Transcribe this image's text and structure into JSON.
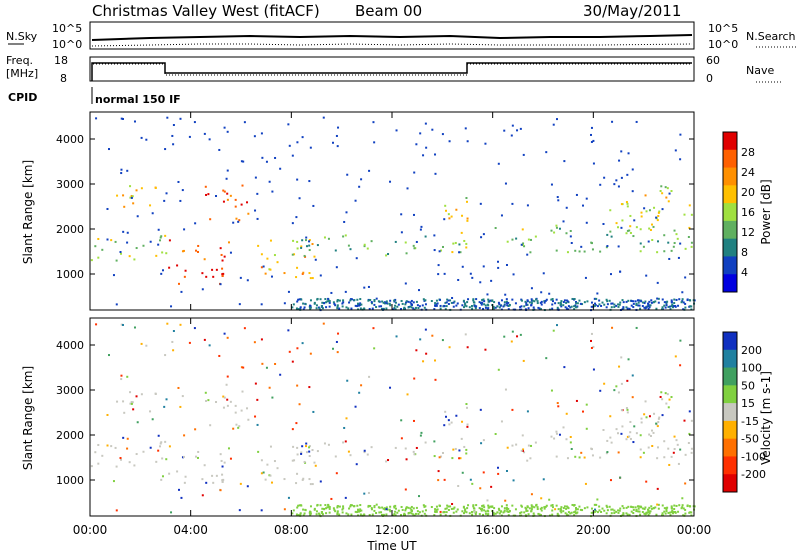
{
  "header": {
    "station": "Christmas Valley West (fitACF)",
    "beam": "Beam 00",
    "date": "30/May/2011"
  },
  "panels": {
    "nsky": {
      "label": "N.Sky",
      "ticks": [
        "10^5",
        "10^0"
      ],
      "right_label": "N.Search"
    },
    "freq": {
      "label_line1": "Freq.",
      "label_line2": "[MHz]",
      "ticks": [
        "18",
        "8"
      ],
      "right_ticks": [
        "60",
        "0"
      ],
      "right_label": "Nave"
    },
    "cpid": {
      "label": "CPID",
      "value": "normal 150 IF"
    }
  },
  "chart_data": [
    {
      "type": "heatmap",
      "name": "power",
      "ylabel": "Slant Range [km]",
      "y_ticks": [
        1000,
        2000,
        3000,
        4000
      ],
      "ylim": [
        200,
        4600
      ],
      "colorbar_label": "Power [dB]",
      "colorbar_ticks": [
        "28",
        "24",
        "20",
        "16",
        "12",
        "8",
        "4"
      ],
      "colorbar_colors": [
        "#e00000",
        "#ff6000",
        "#ff9000",
        "#ffc000",
        "#a0e040",
        "#60b060",
        "#208080",
        "#1040c0",
        "#0000e0"
      ],
      "scatter_bands": [
        {
          "t0": 0.0,
          "t1": 3.0,
          "r0": 1300,
          "r1": 1900,
          "value": 10
        },
        {
          "t0": 1.0,
          "t1": 3.0,
          "r0": 2500,
          "r1": 3100,
          "value": 16
        },
        {
          "t0": 3.0,
          "t1": 5.5,
          "r0": 800,
          "r1": 1800,
          "value": 26
        },
        {
          "t0": 4.5,
          "t1": 6.5,
          "r0": 2200,
          "r1": 3000,
          "value": 26
        },
        {
          "t0": 6.5,
          "t1": 9.0,
          "r0": 900,
          "r1": 1800,
          "value": 18
        },
        {
          "t0": 8.0,
          "t1": 15.0,
          "r0": 1400,
          "r1": 1900,
          "value": 8
        },
        {
          "t0": 14.0,
          "t1": 15.0,
          "r0": 1500,
          "r1": 2800,
          "value": 14
        },
        {
          "t0": 15.5,
          "t1": 24.0,
          "r0": 1500,
          "r1": 2100,
          "value": 10
        },
        {
          "t0": 20.5,
          "t1": 24.0,
          "r0": 2000,
          "r1": 3000,
          "value": 14
        }
      ]
    },
    {
      "type": "heatmap",
      "name": "velocity",
      "ylabel": "Slant Range [km]",
      "y_ticks": [
        1000,
        2000,
        3000,
        4000
      ],
      "ylim": [
        200,
        4600
      ],
      "colorbar_label": "Velocity [m s-1]",
      "colorbar_ticks": [
        "200",
        "100",
        "50",
        "15",
        "-15",
        "-50",
        "-100",
        "-200"
      ],
      "colorbar_colors": [
        "#1030c0",
        "#2080a0",
        "#40a060",
        "#80d040",
        "#c8c8c0",
        "#ffb000",
        "#ff7000",
        "#ff3000",
        "#e00000"
      ],
      "xlabel": "Time UT",
      "x_ticks": [
        "00:00",
        "04:00",
        "08:00",
        "12:00",
        "16:00",
        "20:00",
        "00:00"
      ],
      "xlim": [
        0,
        24
      ]
    }
  ],
  "colors": {
    "frame": "#000000",
    "background": "#ffffff"
  }
}
